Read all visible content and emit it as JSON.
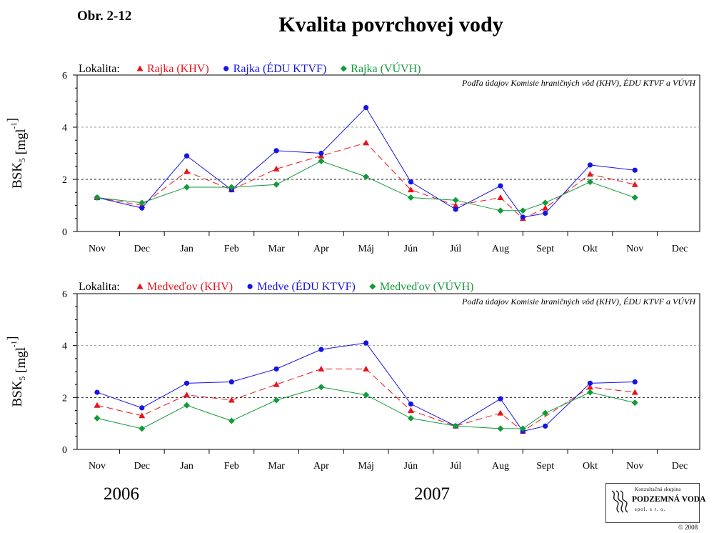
{
  "figure_label": "Obr. 2-12",
  "title": "Kvalita povrchovej vody",
  "colors": {
    "khv": "#e8141c",
    "edu": "#1414e6",
    "vuvh": "#139a39",
    "grid": "#888888"
  },
  "chart_data": [
    {
      "type": "line",
      "legend_prefix": "Lokalita:",
      "source_note": "Podľa údajov Komisie hraničných vôd (KHV), ÉDU KTVF a VÚVH",
      "ylabel_main": "BSK",
      "ylabel_sub": "5",
      "ylabel_unit": "[mgl",
      "ylabel_sup": "-1",
      "ylabel_end": "]",
      "ylim": [
        0,
        6
      ],
      "yticks": [
        0,
        2,
        4,
        6
      ],
      "categories": [
        "Nov",
        "Dec",
        "Jan",
        "Feb",
        "Mar",
        "Apr",
        "Máj",
        "Jún",
        "Júl",
        "Aug",
        "Sept",
        "Okt",
        "Nov",
        "Dec"
      ],
      "series": [
        {
          "name": "Rajka (KHV)",
          "marker": "triangle",
          "color": "#e8141c",
          "dash": "9,5",
          "x": [
            0,
            1,
            2,
            3,
            4,
            5,
            6,
            7,
            8,
            9,
            9.5,
            10,
            11,
            12
          ],
          "y": [
            1.3,
            1.0,
            2.3,
            1.6,
            2.4,
            2.9,
            3.4,
            1.6,
            1.0,
            1.3,
            0.5,
            0.9,
            2.2,
            1.8
          ]
        },
        {
          "name": "Rajka (ÉDU KTVF)",
          "marker": "circle",
          "color": "#1414e6",
          "dash": "",
          "x": [
            0,
            1,
            2,
            3,
            4,
            5,
            6,
            7,
            8,
            9,
            9.5,
            10,
            11,
            12
          ],
          "y": [
            1.3,
            0.9,
            2.9,
            1.6,
            3.1,
            3.0,
            4.75,
            1.9,
            0.85,
            1.75,
            0.55,
            0.7,
            2.55,
            2.35
          ]
        },
        {
          "name": "Rajka (VÚVH)",
          "marker": "diamond",
          "color": "#139a39",
          "dash": "",
          "x": [
            0,
            1,
            2,
            3,
            4,
            5,
            6,
            7,
            8,
            9,
            9.5,
            10,
            11,
            12
          ],
          "y": [
            1.3,
            1.1,
            1.7,
            1.7,
            1.8,
            2.7,
            2.1,
            1.3,
            1.2,
            0.8,
            0.8,
            1.1,
            1.9,
            1.3
          ]
        }
      ]
    },
    {
      "type": "line",
      "legend_prefix": "Lokalita:",
      "source_note": "Podľa údajov Komisie hraničných vôd (KHV), ÉDU KTVF a VÚVH",
      "ylabel_main": "BSK",
      "ylabel_sub": "5",
      "ylabel_unit": "[mgl",
      "ylabel_sup": "-1",
      "ylabel_end": "]",
      "ylim": [
        0,
        6
      ],
      "yticks": [
        0,
        2,
        4,
        6
      ],
      "categories": [
        "Nov",
        "Dec",
        "Jan",
        "Feb",
        "Mar",
        "Apr",
        "Máj",
        "Jún",
        "Júl",
        "Aug",
        "Sept",
        "Okt",
        "Nov",
        "Dec"
      ],
      "series": [
        {
          "name": "Medveďov (KHV)",
          "marker": "triangle",
          "color": "#e8141c",
          "dash": "9,5",
          "x": [
            0,
            1,
            2,
            3,
            4,
            5,
            6,
            7,
            8,
            9,
            9.5,
            11,
            12
          ],
          "y": [
            1.7,
            1.3,
            2.1,
            1.9,
            2.5,
            3.1,
            3.1,
            1.5,
            0.9,
            1.4,
            0.7,
            2.4,
            2.2
          ]
        },
        {
          "name": "Medve (ÉDU KTVF)",
          "marker": "circle",
          "color": "#1414e6",
          "dash": "",
          "x": [
            0,
            1,
            2,
            3,
            4,
            5,
            6,
            7,
            8,
            9,
            9.5,
            10,
            11,
            12
          ],
          "y": [
            2.2,
            1.6,
            2.55,
            2.6,
            3.1,
            3.85,
            4.1,
            1.75,
            0.9,
            1.95,
            0.7,
            0.9,
            2.55,
            2.6
          ]
        },
        {
          "name": "Medveďov (VÚVH)",
          "marker": "diamond",
          "color": "#139a39",
          "dash": "",
          "x": [
            0,
            1,
            2,
            3,
            4,
            5,
            6,
            7,
            8,
            9,
            9.5,
            10,
            11,
            12
          ],
          "y": [
            1.2,
            0.8,
            1.7,
            1.1,
            1.9,
            2.4,
            2.1,
            1.2,
            0.9,
            0.8,
            0.8,
            1.4,
            2.2,
            1.8
          ]
        }
      ]
    }
  ],
  "years": [
    "2006",
    "2007"
  ],
  "logo": {
    "small_text": "Konzultačná skupina",
    "name": "PODZEMNÁ VODA",
    "sub_text": "spol. s r. o.",
    "copyright": "© 2008"
  }
}
